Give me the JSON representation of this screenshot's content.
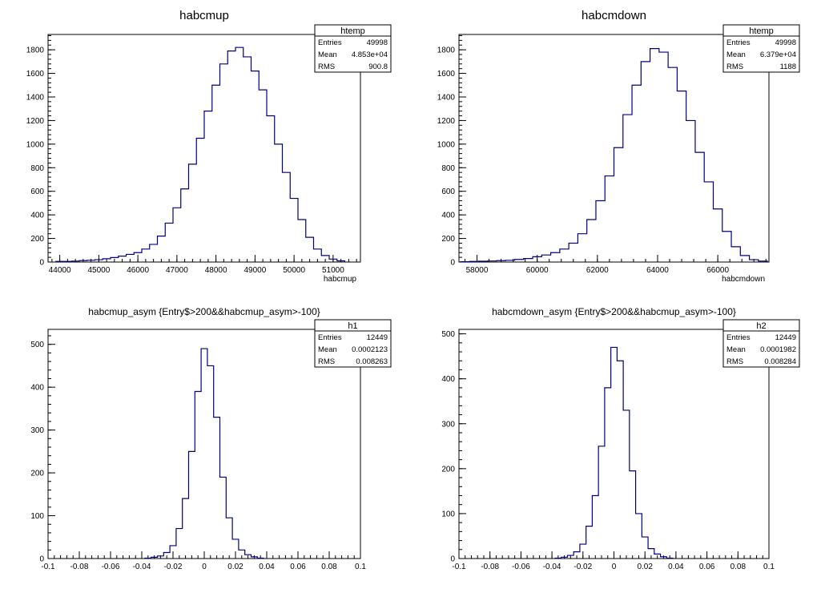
{
  "chart_data": [
    {
      "type": "histogram",
      "title": "habcmup",
      "xlabel": "habcmup",
      "ylabel": "",
      "xlim": [
        43700,
        51700
      ],
      "ylim": [
        0,
        1930
      ],
      "xticks": [
        44000,
        45000,
        46000,
        47000,
        48000,
        49000,
        50000,
        51000
      ],
      "yticks": [
        0,
        200,
        400,
        600,
        800,
        1000,
        1200,
        1400,
        1600,
        1800
      ],
      "stats": {
        "name": "htemp",
        "rows": [
          [
            "Entries",
            "49998"
          ],
          [
            "Mean",
            "4.853e+04"
          ],
          [
            "RMS",
            "900.8"
          ]
        ]
      },
      "series": [
        {
          "x": [
            44000,
            44200,
            44400,
            44600,
            44800,
            45000,
            45200,
            45400,
            45600,
            45800,
            46000,
            46200,
            46400,
            46600,
            46800,
            47000,
            47200,
            47400,
            47600,
            47800,
            48000,
            48200,
            48400,
            48600,
            48800,
            49000,
            49200,
            49400,
            49600,
            49800,
            50000,
            50200,
            50400,
            50600,
            50800,
            51000,
            51200
          ],
          "y": [
            5,
            5,
            8,
            12,
            15,
            20,
            28,
            38,
            50,
            65,
            80,
            110,
            150,
            220,
            330,
            460,
            620,
            830,
            1050,
            1280,
            1500,
            1680,
            1790,
            1820,
            1740,
            1620,
            1460,
            1240,
            1000,
            760,
            540,
            360,
            210,
            110,
            55,
            25,
            10
          ]
        }
      ]
    },
    {
      "type": "histogram",
      "title": "habcmdown",
      "xlabel": "habcmdown",
      "ylabel": "",
      "xlim": [
        57400,
        67700
      ],
      "ylim": [
        0,
        1930
      ],
      "xticks": [
        58000,
        60000,
        62000,
        64000,
        66000
      ],
      "yticks": [
        0,
        200,
        400,
        600,
        800,
        1000,
        1200,
        1400,
        1600,
        1800
      ],
      "stats": {
        "name": "htemp",
        "rows": [
          [
            "Entries",
            "49998"
          ],
          [
            "Mean",
            "6.379e+04"
          ],
          [
            "RMS",
            "1188"
          ]
        ]
      },
      "series": [
        {
          "x": [
            57600,
            57900,
            58200,
            58500,
            58800,
            59100,
            59400,
            59700,
            60000,
            60300,
            60600,
            60900,
            61200,
            61500,
            61800,
            62100,
            62400,
            62700,
            63000,
            63300,
            63600,
            63900,
            64200,
            64500,
            64800,
            65100,
            65400,
            65700,
            66000,
            66300,
            66600,
            66900,
            67200,
            67500
          ],
          "y": [
            3,
            5,
            7,
            9,
            12,
            15,
            22,
            30,
            45,
            60,
            80,
            110,
            160,
            240,
            360,
            520,
            730,
            970,
            1250,
            1500,
            1700,
            1810,
            1780,
            1650,
            1450,
            1200,
            930,
            680,
            450,
            260,
            130,
            55,
            20,
            8
          ]
        }
      ]
    },
    {
      "type": "histogram",
      "title": "habcmup_asym {Entry$>200&&habcmup_asym>-100}",
      "xlabel": "",
      "ylabel": "",
      "xlim": [
        -0.1,
        0.1
      ],
      "ylim": [
        0,
        535
      ],
      "xticks": [
        -0.1,
        -0.08,
        -0.06,
        -0.04,
        -0.02,
        0,
        0.02,
        0.04,
        0.06,
        0.08,
        0.1
      ],
      "xtick_labels": [
        "-0.1",
        "-0.08",
        "-0.06",
        "-0.04",
        "-0.02",
        "0",
        "0.02",
        "0.04",
        "0.06",
        "0.08",
        "0.1"
      ],
      "yticks": [
        0,
        100,
        200,
        300,
        400,
        500
      ],
      "stats": {
        "name": "h1",
        "rows": [
          [
            "Entries",
            "12449"
          ],
          [
            "Mean",
            "0.0002123"
          ],
          [
            "RMS",
            "0.008263"
          ]
        ]
      },
      "series": [
        {
          "x": [
            -0.036,
            -0.032,
            -0.028,
            -0.024,
            -0.02,
            -0.016,
            -0.012,
            -0.008,
            -0.004,
            0,
            0.004,
            0.008,
            0.012,
            0.016,
            0.02,
            0.024,
            0.028,
            0.032,
            0.036
          ],
          "y": [
            1,
            3,
            6,
            14,
            30,
            70,
            140,
            250,
            390,
            490,
            450,
            330,
            190,
            95,
            45,
            20,
            9,
            4,
            1
          ]
        }
      ]
    },
    {
      "type": "histogram",
      "title": "habcmdown_asym {Entry$>200&&habcmup_asym>-100}",
      "xlabel": "",
      "ylabel": "",
      "xlim": [
        -0.1,
        0.1
      ],
      "ylim": [
        0,
        510
      ],
      "xticks": [
        -0.1,
        -0.08,
        -0.06,
        -0.04,
        -0.02,
        0,
        0.02,
        0.04,
        0.06,
        0.08,
        0.1
      ],
      "xtick_labels": [
        "-0.1",
        "-0.08",
        "-0.06",
        "-0.04",
        "-0.02",
        "0",
        "0.02",
        "0.04",
        "0.06",
        "0.08",
        "0.1"
      ],
      "yticks": [
        0,
        100,
        200,
        300,
        400,
        500
      ],
      "stats": {
        "name": "h2",
        "rows": [
          [
            "Entries",
            "12449"
          ],
          [
            "Mean",
            "0.0001982"
          ],
          [
            "RMS",
            "0.008284"
          ]
        ]
      },
      "series": [
        {
          "x": [
            -0.036,
            -0.032,
            -0.028,
            -0.024,
            -0.02,
            -0.016,
            -0.012,
            -0.008,
            -0.004,
            0,
            0.004,
            0.008,
            0.012,
            0.016,
            0.02,
            0.024,
            0.028,
            0.032,
            0.036
          ],
          "y": [
            1,
            3,
            7,
            15,
            32,
            72,
            140,
            250,
            380,
            470,
            440,
            330,
            195,
            100,
            48,
            22,
            10,
            4,
            1
          ]
        }
      ]
    }
  ],
  "colors": {
    "line": "#000080",
    "frame": "#000000",
    "text": "#000000",
    "background": "#ffffff"
  }
}
